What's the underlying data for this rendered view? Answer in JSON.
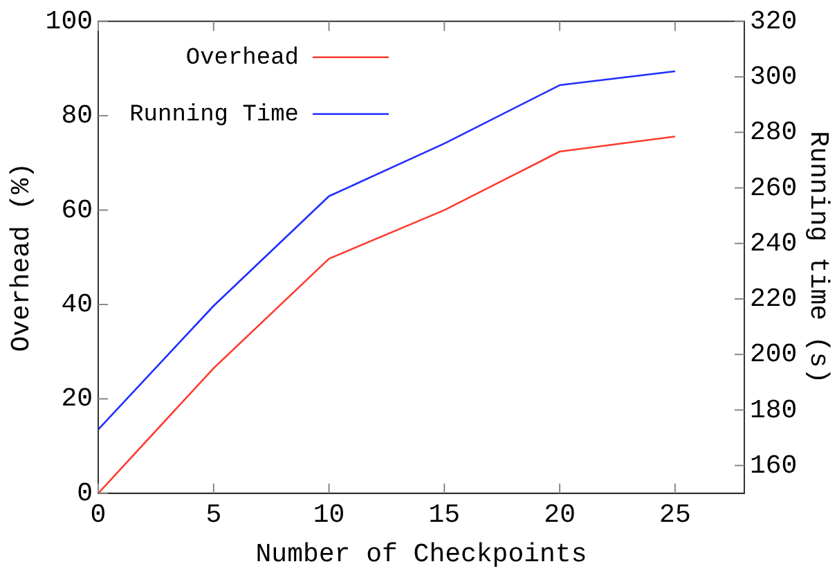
{
  "chart_data": {
    "type": "line",
    "xlabel": "Number of Checkpoints",
    "ylabel": "Overhead (%)",
    "y2label": "Running time (s)",
    "x": [
      0,
      5,
      10,
      15,
      20,
      25
    ],
    "series": [
      {
        "name": "Overhead",
        "color": "#ff3b2f",
        "values": [
          0,
          26.5,
          49.7,
          60,
          72.4,
          75.6
        ]
      },
      {
        "name": "Running Time",
        "color": "#1f2fff",
        "values": [
          173,
          217.5,
          257,
          276,
          297,
          302
        ],
        "axis": "y2"
      }
    ],
    "xlim": [
      0,
      28
    ],
    "xticks": [
      0,
      5,
      10,
      15,
      20,
      25
    ],
    "ylim": [
      0,
      100
    ],
    "yticks": [
      0,
      20,
      40,
      60,
      80,
      100
    ],
    "y2lim": [
      150,
      320
    ],
    "y2ticks": [
      160,
      180,
      200,
      220,
      240,
      260,
      280,
      300,
      320
    ],
    "legend": "top left",
    "grid": false,
    "marker": "none",
    "line_style": "solid"
  }
}
